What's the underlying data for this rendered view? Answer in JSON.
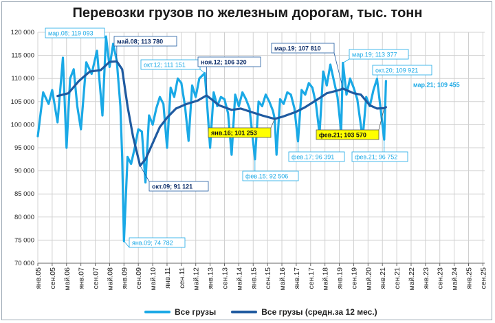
{
  "title": "Перевозки грузов по железным дорогам, тыс. тонн",
  "legend": {
    "series1": "Все грузы",
    "series2": "Все грузы (средн.за 12 мес.)"
  },
  "colors": {
    "series1": "#1aa9e6",
    "series2": "#1f5aa0",
    "highlight": "#ffff00",
    "grid": "#d0d0d0"
  },
  "chart_data": {
    "type": "line",
    "ylim": [
      70000,
      120000
    ],
    "yticks": [
      "70 000",
      "75 000",
      "80 000",
      "85 000",
      "90 000",
      "95 000",
      "100 000",
      "105 000",
      "110 000",
      "115 000",
      "120 000"
    ],
    "x_tick_labels": [
      "янв.05",
      "сен.05",
      "май.06",
      "янв.07",
      "сен.07",
      "май.08",
      "янв.09",
      "сен.09",
      "май.10",
      "янв.11",
      "сен.11",
      "май.12",
      "янв.13",
      "сен.13",
      "май.14",
      "янв.15",
      "сен.15",
      "май.16",
      "янв.17",
      "сен.17",
      "май.18",
      "янв.19",
      "сен.19",
      "май.20",
      "янв.21",
      "сен.21",
      "май.22",
      "янв.23",
      "сен.23",
      "май.24",
      "янв.25",
      "сен.25"
    ],
    "x_start": "янв.05",
    "x_end": "окт.25",
    "series": [
      {
        "name": "Все грузы",
        "points": [
          [
            "янв.05",
            97500
          ],
          [
            "апр.05",
            107000
          ],
          [
            "июл.05",
            104500
          ],
          [
            "сен.05",
            107500
          ],
          [
            "дек.05",
            100500
          ],
          [
            "мар.06",
            114500
          ],
          [
            "май.06",
            95000
          ],
          [
            "июл.06",
            110000
          ],
          [
            "сен.06",
            112000
          ],
          [
            "ноя.06",
            104000
          ],
          [
            "янв.07",
            99000
          ],
          [
            "апр.07",
            113500
          ],
          [
            "июл.07",
            111000
          ],
          [
            "окт.07",
            116000
          ],
          [
            "янв.08",
            102000
          ],
          [
            "мар.08",
            119093
          ],
          [
            "май.08",
            112500
          ],
          [
            "июл.08",
            117500
          ],
          [
            "сен.08",
            113780
          ],
          [
            "ноя.08",
            104000
          ],
          [
            "дек.08",
            93000
          ],
          [
            "янв.09",
            74782
          ],
          [
            "мар.09",
            93000
          ],
          [
            "май.09",
            91500
          ],
          [
            "июл.09",
            95000
          ],
          [
            "сен.09",
            99000
          ],
          [
            "ноя.09",
            98500
          ],
          [
            "янв.10",
            87500
          ],
          [
            "мар.10",
            102000
          ],
          [
            "май.10",
            100000
          ],
          [
            "июл.10",
            103500
          ],
          [
            "сен.10",
            106000
          ],
          [
            "ноя.10",
            104500
          ],
          [
            "янв.11",
            95000
          ],
          [
            "мар.11",
            108000
          ],
          [
            "май.11",
            106000
          ],
          [
            "июл.11",
            110000
          ],
          [
            "сен.11",
            109000
          ],
          [
            "ноя.11",
            104000
          ],
          [
            "янв.12",
            96500
          ],
          [
            "мар.12",
            108500
          ],
          [
            "май.12",
            106000
          ],
          [
            "июл.12",
            110000
          ],
          [
            "окт.12",
            111151
          ],
          [
            "ноя.12",
            106320
          ],
          [
            "янв.13",
            95000
          ],
          [
            "мар.13",
            107000
          ],
          [
            "май.13",
            104000
          ],
          [
            "июл.13",
            106000
          ],
          [
            "сен.13",
            105500
          ],
          [
            "ноя.13",
            102500
          ],
          [
            "янв.14",
            93500
          ],
          [
            "мар.14",
            106500
          ],
          [
            "май.14",
            104000
          ],
          [
            "июл.14",
            107000
          ],
          [
            "сен.14",
            105500
          ],
          [
            "ноя.14",
            103500
          ],
          [
            "фев.15",
            92506
          ],
          [
            "апр.15",
            105000
          ],
          [
            "июн.15",
            104000
          ],
          [
            "авг.15",
            106500
          ],
          [
            "окт.15",
            105000
          ],
          [
            "дек.15",
            103000
          ],
          [
            "янв.16",
            101253
          ],
          [
            "фев.16",
            93500
          ],
          [
            "апр.16",
            105500
          ],
          [
            "июн.16",
            104500
          ],
          [
            "авг.16",
            107000
          ],
          [
            "окт.16",
            106500
          ],
          [
            "дек.16",
            103500
          ],
          [
            "фев.17",
            96391
          ],
          [
            "апр.17",
            107500
          ],
          [
            "июн.17",
            106500
          ],
          [
            "авг.17",
            109000
          ],
          [
            "окт.17",
            108000
          ],
          [
            "дек.17",
            104500
          ],
          [
            "фев.18",
            98000
          ],
          [
            "апр.18",
            111500
          ],
          [
            "июн.18",
            108500
          ],
          [
            "авг.18",
            113000
          ],
          [
            "окт.18",
            109500
          ],
          [
            "дек.18",
            106000
          ],
          [
            "фев.19",
            98500
          ],
          [
            "мар.19",
            113377
          ],
          [
            "май.19",
            106500
          ],
          [
            "июл.19",
            110000
          ],
          [
            "сен.19",
            108000
          ],
          [
            "ноя.19",
            105500
          ],
          [
            "фев.20",
            97000
          ],
          [
            "апр.20",
            106000
          ],
          [
            "июн.20",
            104000
          ],
          [
            "авг.20",
            107500
          ],
          [
            "окт.20",
            109921
          ],
          [
            "дек.20",
            103500
          ],
          [
            "фев.21",
            96752
          ],
          [
            "мар.21",
            109455
          ]
        ]
      },
      {
        "name": "Все грузы (средн.за 12 мес.)",
        "points": [
          [
            "дек.05",
            106200
          ],
          [
            "июн.06",
            106800
          ],
          [
            "дек.06",
            109500
          ],
          [
            "июн.07",
            111500
          ],
          [
            "дек.07",
            111800
          ],
          [
            "май.08",
            113600
          ],
          [
            "сен.08",
            113700
          ],
          [
            "дек.08",
            112000
          ],
          [
            "мар.09",
            104000
          ],
          [
            "июн.09",
            97500
          ],
          [
            "окт.09",
            91121
          ],
          [
            "янв.10",
            92500
          ],
          [
            "май.10",
            96000
          ],
          [
            "сен.10",
            99500
          ],
          [
            "янв.11",
            101500
          ],
          [
            "июн.11",
            103500
          ],
          [
            "дек.11",
            104500
          ],
          [
            "июн.12",
            105200
          ],
          [
            "ноя.12",
            106320
          ],
          [
            "июн.13",
            104200
          ],
          [
            "янв.14",
            103200
          ],
          [
            "июн.14",
            103500
          ],
          [
            "янв.15",
            102600
          ],
          [
            "июн.15",
            102000
          ],
          [
            "янв.16",
            101253
          ],
          [
            "июн.16",
            101800
          ],
          [
            "янв.17",
            102800
          ],
          [
            "июн.17",
            103800
          ],
          [
            "янв.18",
            105500
          ],
          [
            "июн.18",
            106800
          ],
          [
            "янв.19",
            107500
          ],
          [
            "мар.19",
            107810
          ],
          [
            "сен.19",
            106800
          ],
          [
            "янв.20",
            106500
          ],
          [
            "июн.20",
            104200
          ],
          [
            "окт.20",
            103500
          ],
          [
            "фев.21",
            103570
          ],
          [
            "мар.21",
            103800
          ]
        ]
      }
    ],
    "annotations": [
      {
        "text": "мар.08; 119 093",
        "style": "light"
      },
      {
        "text": "май.08;  113 780",
        "style": "dark"
      },
      {
        "text": "окт.12; 111 151",
        "style": "light"
      },
      {
        "text": "ноя.12;  106 320",
        "style": "dark"
      },
      {
        "text": "мар.19;  107 810",
        "style": "dark"
      },
      {
        "text": "мар.19; 113 377",
        "style": "light"
      },
      {
        "text": "окт.20; 109 921",
        "style": "light"
      },
      {
        "text": "мар.21; 109 455",
        "style": "big"
      },
      {
        "text": "янв.16;  101 253",
        "style": "yellow"
      },
      {
        "text": "фев.21;  103 570",
        "style": "yellow"
      },
      {
        "text": "окт.09;  91 121",
        "style": "dark"
      },
      {
        "text": "янв.09; 74 782",
        "style": "light"
      },
      {
        "text": "фев.15; 92 506",
        "style": "light"
      },
      {
        "text": "фев.17; 96 391",
        "style": "light"
      },
      {
        "text": "фев.21; 96 752",
        "style": "light"
      }
    ]
  }
}
